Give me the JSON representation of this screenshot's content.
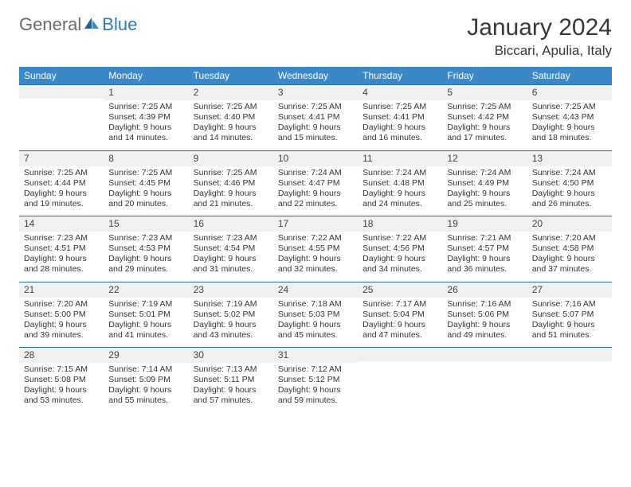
{
  "logo": {
    "part1": "General",
    "part2": "Blue"
  },
  "title": "January 2024",
  "location": "Biccari, Apulia, Italy",
  "colors": {
    "header_bg": "#3b87c8",
    "header_text": "#ffffff",
    "daynum_bg": "#eef0f1",
    "row_border": "#2a6fa8",
    "logo_gray": "#6b6b6b",
    "logo_blue": "#2a7bbf",
    "page_bg": "#ffffff",
    "text": "#333333"
  },
  "fonts": {
    "title_size_pt": 22,
    "location_size_pt": 13,
    "header_size_pt": 9,
    "daynum_size_pt": 9,
    "body_size_pt": 8
  },
  "weekdays": [
    "Sunday",
    "Monday",
    "Tuesday",
    "Wednesday",
    "Thursday",
    "Friday",
    "Saturday"
  ],
  "weeks": [
    [
      null,
      {
        "n": "1",
        "sr": "Sunrise: 7:25 AM",
        "ss": "Sunset: 4:39 PM",
        "d1": "Daylight: 9 hours",
        "d2": "and 14 minutes."
      },
      {
        "n": "2",
        "sr": "Sunrise: 7:25 AM",
        "ss": "Sunset: 4:40 PM",
        "d1": "Daylight: 9 hours",
        "d2": "and 14 minutes."
      },
      {
        "n": "3",
        "sr": "Sunrise: 7:25 AM",
        "ss": "Sunset: 4:41 PM",
        "d1": "Daylight: 9 hours",
        "d2": "and 15 minutes."
      },
      {
        "n": "4",
        "sr": "Sunrise: 7:25 AM",
        "ss": "Sunset: 4:41 PM",
        "d1": "Daylight: 9 hours",
        "d2": "and 16 minutes."
      },
      {
        "n": "5",
        "sr": "Sunrise: 7:25 AM",
        "ss": "Sunset: 4:42 PM",
        "d1": "Daylight: 9 hours",
        "d2": "and 17 minutes."
      },
      {
        "n": "6",
        "sr": "Sunrise: 7:25 AM",
        "ss": "Sunset: 4:43 PM",
        "d1": "Daylight: 9 hours",
        "d2": "and 18 minutes."
      }
    ],
    [
      {
        "n": "7",
        "sr": "Sunrise: 7:25 AM",
        "ss": "Sunset: 4:44 PM",
        "d1": "Daylight: 9 hours",
        "d2": "and 19 minutes."
      },
      {
        "n": "8",
        "sr": "Sunrise: 7:25 AM",
        "ss": "Sunset: 4:45 PM",
        "d1": "Daylight: 9 hours",
        "d2": "and 20 minutes."
      },
      {
        "n": "9",
        "sr": "Sunrise: 7:25 AM",
        "ss": "Sunset: 4:46 PM",
        "d1": "Daylight: 9 hours",
        "d2": "and 21 minutes."
      },
      {
        "n": "10",
        "sr": "Sunrise: 7:24 AM",
        "ss": "Sunset: 4:47 PM",
        "d1": "Daylight: 9 hours",
        "d2": "and 22 minutes."
      },
      {
        "n": "11",
        "sr": "Sunrise: 7:24 AM",
        "ss": "Sunset: 4:48 PM",
        "d1": "Daylight: 9 hours",
        "d2": "and 24 minutes."
      },
      {
        "n": "12",
        "sr": "Sunrise: 7:24 AM",
        "ss": "Sunset: 4:49 PM",
        "d1": "Daylight: 9 hours",
        "d2": "and 25 minutes."
      },
      {
        "n": "13",
        "sr": "Sunrise: 7:24 AM",
        "ss": "Sunset: 4:50 PM",
        "d1": "Daylight: 9 hours",
        "d2": "and 26 minutes."
      }
    ],
    [
      {
        "n": "14",
        "sr": "Sunrise: 7:23 AM",
        "ss": "Sunset: 4:51 PM",
        "d1": "Daylight: 9 hours",
        "d2": "and 28 minutes."
      },
      {
        "n": "15",
        "sr": "Sunrise: 7:23 AM",
        "ss": "Sunset: 4:53 PM",
        "d1": "Daylight: 9 hours",
        "d2": "and 29 minutes."
      },
      {
        "n": "16",
        "sr": "Sunrise: 7:23 AM",
        "ss": "Sunset: 4:54 PM",
        "d1": "Daylight: 9 hours",
        "d2": "and 31 minutes."
      },
      {
        "n": "17",
        "sr": "Sunrise: 7:22 AM",
        "ss": "Sunset: 4:55 PM",
        "d1": "Daylight: 9 hours",
        "d2": "and 32 minutes."
      },
      {
        "n": "18",
        "sr": "Sunrise: 7:22 AM",
        "ss": "Sunset: 4:56 PM",
        "d1": "Daylight: 9 hours",
        "d2": "and 34 minutes."
      },
      {
        "n": "19",
        "sr": "Sunrise: 7:21 AM",
        "ss": "Sunset: 4:57 PM",
        "d1": "Daylight: 9 hours",
        "d2": "and 36 minutes."
      },
      {
        "n": "20",
        "sr": "Sunrise: 7:20 AM",
        "ss": "Sunset: 4:58 PM",
        "d1": "Daylight: 9 hours",
        "d2": "and 37 minutes."
      }
    ],
    [
      {
        "n": "21",
        "sr": "Sunrise: 7:20 AM",
        "ss": "Sunset: 5:00 PM",
        "d1": "Daylight: 9 hours",
        "d2": "and 39 minutes."
      },
      {
        "n": "22",
        "sr": "Sunrise: 7:19 AM",
        "ss": "Sunset: 5:01 PM",
        "d1": "Daylight: 9 hours",
        "d2": "and 41 minutes."
      },
      {
        "n": "23",
        "sr": "Sunrise: 7:19 AM",
        "ss": "Sunset: 5:02 PM",
        "d1": "Daylight: 9 hours",
        "d2": "and 43 minutes."
      },
      {
        "n": "24",
        "sr": "Sunrise: 7:18 AM",
        "ss": "Sunset: 5:03 PM",
        "d1": "Daylight: 9 hours",
        "d2": "and 45 minutes."
      },
      {
        "n": "25",
        "sr": "Sunrise: 7:17 AM",
        "ss": "Sunset: 5:04 PM",
        "d1": "Daylight: 9 hours",
        "d2": "and 47 minutes."
      },
      {
        "n": "26",
        "sr": "Sunrise: 7:16 AM",
        "ss": "Sunset: 5:06 PM",
        "d1": "Daylight: 9 hours",
        "d2": "and 49 minutes."
      },
      {
        "n": "27",
        "sr": "Sunrise: 7:16 AM",
        "ss": "Sunset: 5:07 PM",
        "d1": "Daylight: 9 hours",
        "d2": "and 51 minutes."
      }
    ],
    [
      {
        "n": "28",
        "sr": "Sunrise: 7:15 AM",
        "ss": "Sunset: 5:08 PM",
        "d1": "Daylight: 9 hours",
        "d2": "and 53 minutes."
      },
      {
        "n": "29",
        "sr": "Sunrise: 7:14 AM",
        "ss": "Sunset: 5:09 PM",
        "d1": "Daylight: 9 hours",
        "d2": "and 55 minutes."
      },
      {
        "n": "30",
        "sr": "Sunrise: 7:13 AM",
        "ss": "Sunset: 5:11 PM",
        "d1": "Daylight: 9 hours",
        "d2": "and 57 minutes."
      },
      {
        "n": "31",
        "sr": "Sunrise: 7:12 AM",
        "ss": "Sunset: 5:12 PM",
        "d1": "Daylight: 9 hours",
        "d2": "and 59 minutes."
      },
      null,
      null,
      null
    ]
  ]
}
